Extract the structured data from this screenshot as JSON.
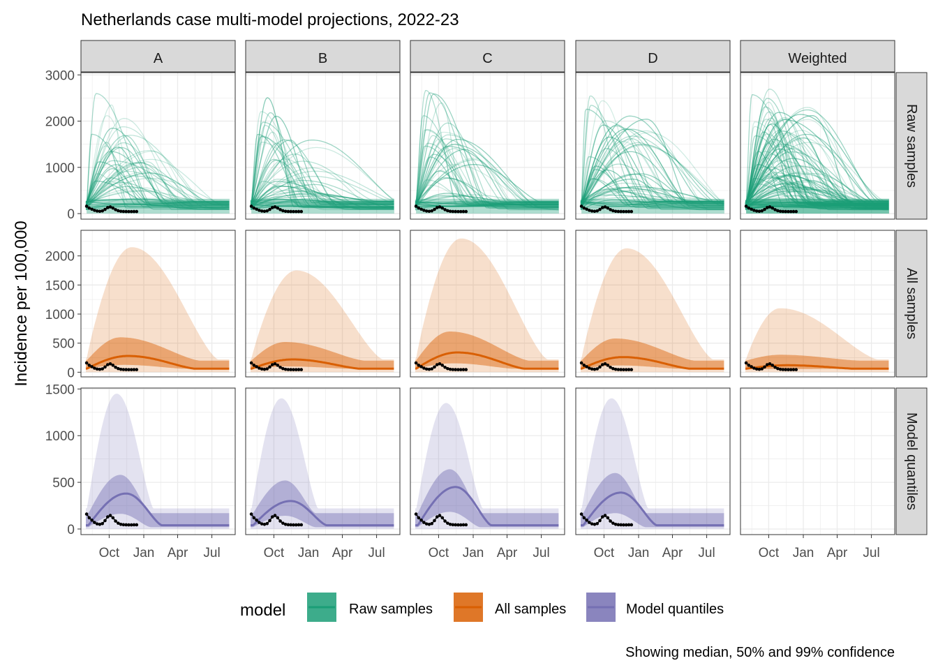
{
  "chart_data": {
    "type": "line",
    "title": "Netherlands case multi-model projections, 2022-23",
    "ylabel": "Incidence per 100,000",
    "xlabel": "",
    "x_ticks": [
      "Oct",
      "Jan",
      "Apr",
      "Jul"
    ],
    "columns": [
      "A",
      "B",
      "C",
      "D",
      "Weighted"
    ],
    "rows": [
      {
        "label": "Raw samples",
        "ylim": [
          -120,
          3050
        ],
        "yticks": [
          0,
          1000,
          2000,
          3000
        ]
      },
      {
        "label": "All samples",
        "ylim": [
          -80,
          2440
        ],
        "yticks": [
          0,
          500,
          1000,
          1500,
          2000
        ]
      },
      {
        "label": "Model quantiles",
        "ylim": [
          -60,
          1510
        ],
        "yticks": [
          0,
          500,
          1000,
          1500
        ]
      }
    ],
    "observed": [
      {
        "x": -60,
        "y": 160
      },
      {
        "x": -53,
        "y": 120
      },
      {
        "x": -46,
        "y": 95
      },
      {
        "x": -39,
        "y": 70
      },
      {
        "x": -32,
        "y": 55
      },
      {
        "x": -25,
        "y": 50
      },
      {
        "x": -18,
        "y": 58
      },
      {
        "x": -11,
        "y": 90
      },
      {
        "x": -4,
        "y": 130
      },
      {
        "x": 3,
        "y": 145
      },
      {
        "x": 10,
        "y": 120
      },
      {
        "x": 17,
        "y": 85
      },
      {
        "x": 24,
        "y": 62
      },
      {
        "x": 31,
        "y": 50
      },
      {
        "x": 38,
        "y": 46
      },
      {
        "x": 45,
        "y": 45
      },
      {
        "x": 52,
        "y": 44
      },
      {
        "x": 59,
        "y": 44
      },
      {
        "x": 66,
        "y": 45
      },
      {
        "x": 73,
        "y": 45
      }
    ],
    "raw_samples_peaks": {
      "A": 2150,
      "B": 1730,
      "C": 2280,
      "D": 2120,
      "Weighted": 2300
    },
    "all_samples_bands": {
      "A": {
        "median_peak": 280,
        "q50_peak": 600,
        "q99_peak": 2150
      },
      "B": {
        "median_peak": 220,
        "q50_peak": 520,
        "q99_peak": 1750
      },
      "C": {
        "median_peak": 340,
        "q50_peak": 700,
        "q99_peak": 2300
      },
      "D": {
        "median_peak": 260,
        "q50_peak": 580,
        "q99_peak": 2130
      },
      "Weighted": {
        "median_peak": 120,
        "q50_peak": 300,
        "q99_peak": 1100
      }
    },
    "model_quantiles_bands": {
      "A": {
        "median_peak": 380,
        "q50_peak": 580,
        "q99_peak": 1450
      },
      "B": {
        "median_peak": 300,
        "q50_peak": 520,
        "q99_peak": 1400
      },
      "C": {
        "median_peak": 450,
        "q50_peak": 640,
        "q99_peak": 1350
      },
      "D": {
        "median_peak": 390,
        "q50_peak": 600,
        "q99_peak": 1400
      }
    },
    "legend": {
      "title": "model",
      "entries": [
        {
          "label": "Raw samples",
          "fill": "#1b9e77",
          "line": "#1b9e77"
        },
        {
          "label": "All samples",
          "fill": "#d95f02",
          "line": "#d95f02"
        },
        {
          "label": "Model quantiles",
          "fill": "#7570b3",
          "line": "#7570b3"
        }
      ],
      "position": "bottom"
    },
    "caption": "Showing median, 50% and 99% confidence",
    "colors": {
      "raw": "#1b9e77",
      "all": "#d95f02",
      "quant": "#7570b3",
      "observed": "#000000",
      "strip": "#d9d9d9",
      "grid": "#ebebeb"
    }
  }
}
